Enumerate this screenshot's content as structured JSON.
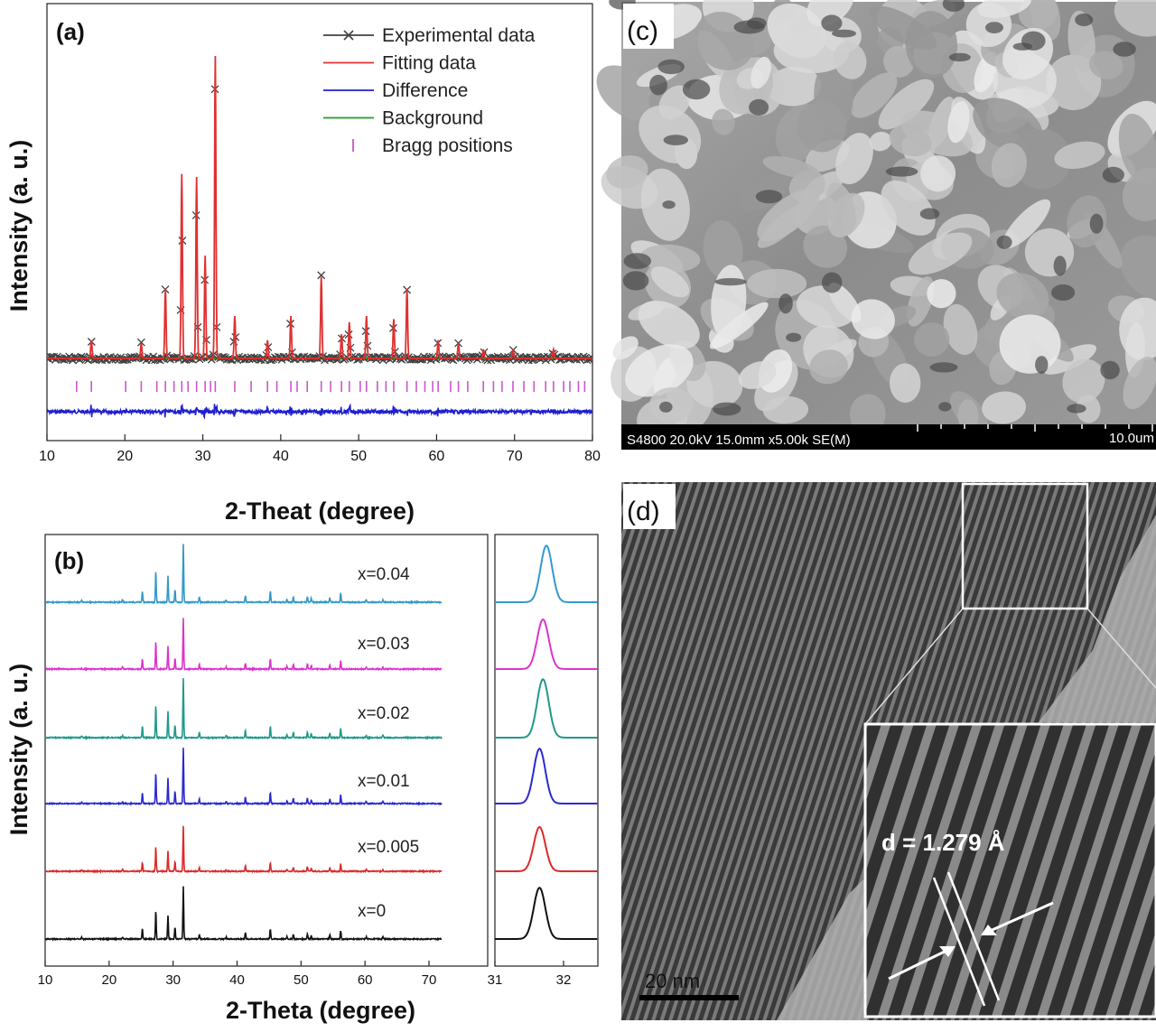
{
  "panels": {
    "a": {
      "label": "(a)"
    },
    "b": {
      "label": "(b)"
    },
    "c": {
      "label": "(c)",
      "sem_info": "S4800 20.0kV 15.0mm x5.00k SE(M)",
      "scale_text": "10.0um"
    },
    "d": {
      "label": "(d)",
      "scale_text": "20 nm",
      "annotation": "d = 1.279 Å"
    }
  },
  "colors": {
    "experimental": "#404040",
    "fitting": "#e03030",
    "difference": "#2020d0",
    "background": "#20a020",
    "bragg": "#cc55cc",
    "b_series": [
      "#3399cc",
      "#dd33cc",
      "#20998a",
      "#2a2ad0",
      "#dd2a2a",
      "#111111"
    ]
  },
  "chart_data": [
    {
      "type": "line",
      "panel": "a",
      "xlabel": "2-Theat (degree)",
      "ylabel": "Intensity (a. u.)",
      "xlim": [
        10,
        80
      ],
      "xticks": [
        10,
        20,
        30,
        40,
        50,
        60,
        70,
        80
      ],
      "legend_position": "top-right",
      "legend": [
        "Experimental data",
        "Fitting data",
        "Difference",
        "Background",
        "Bragg positions"
      ],
      "peaks": [
        {
          "x": 15.7,
          "h": 0.06
        },
        {
          "x": 22.1,
          "h": 0.05
        },
        {
          "x": 25.2,
          "h": 0.23
        },
        {
          "x": 27.3,
          "h": 0.61
        },
        {
          "x": 29.2,
          "h": 0.6
        },
        {
          "x": 30.3,
          "h": 0.34
        },
        {
          "x": 31.6,
          "h": 1.0
        },
        {
          "x": 34.1,
          "h": 0.14
        },
        {
          "x": 38.3,
          "h": 0.06
        },
        {
          "x": 41.3,
          "h": 0.14
        },
        {
          "x": 45.2,
          "h": 0.27
        },
        {
          "x": 47.8,
          "h": 0.08
        },
        {
          "x": 48.8,
          "h": 0.12
        },
        {
          "x": 51.0,
          "h": 0.14
        },
        {
          "x": 54.5,
          "h": 0.13
        },
        {
          "x": 56.2,
          "h": 0.23
        },
        {
          "x": 60.2,
          "h": 0.06
        },
        {
          "x": 62.8,
          "h": 0.05
        },
        {
          "x": 66.0,
          "h": 0.03
        },
        {
          "x": 69.8,
          "h": 0.03
        },
        {
          "x": 75.0,
          "h": 0.03
        }
      ],
      "bragg_positions": [
        13.8,
        15.7,
        20.1,
        22.1,
        24.1,
        25.2,
        26.3,
        27.3,
        28.1,
        29.2,
        30.3,
        31.0,
        31.6,
        34.1,
        36.2,
        38.3,
        39.5,
        41.3,
        42.1,
        43.4,
        45.2,
        46.4,
        47.8,
        48.8,
        50.2,
        51.0,
        52.4,
        53.5,
        54.5,
        56.2,
        57.4,
        58.5,
        59.5,
        60.2,
        61.8,
        62.8,
        64.0,
        66.0,
        67.3,
        68.4,
        69.8,
        71.2,
        72.5,
        74.0,
        75.0,
        76.3,
        77.1,
        78.2,
        79.0
      ]
    },
    {
      "type": "line",
      "panel": "b",
      "xlabel": "2-Theta (degree)",
      "ylabel": "Intensity (a. u.)",
      "xlim": [
        10,
        31
      ],
      "xticks": [
        10,
        20,
        30,
        40,
        50,
        60,
        70
      ],
      "xticks_right": [
        31,
        32
      ],
      "xlim_right": [
        31,
        32.5
      ],
      "series": [
        {
          "name": "x=0.04",
          "main_peak": 31.75
        },
        {
          "name": "x=0.03",
          "main_peak": 31.7
        },
        {
          "name": "x=0.02",
          "main_peak": 31.7
        },
        {
          "name": "x=0.01",
          "main_peak": 31.65
        },
        {
          "name": "x=0.005",
          "main_peak": 31.65
        },
        {
          "name": "x=0",
          "main_peak": 31.65
        }
      ],
      "peaks": [
        {
          "x": 15.7,
          "h": 0.03
        },
        {
          "x": 22.1,
          "h": 0.04
        },
        {
          "x": 25.2,
          "h": 0.2
        },
        {
          "x": 27.3,
          "h": 0.55
        },
        {
          "x": 29.2,
          "h": 0.45
        },
        {
          "x": 30.3,
          "h": 0.22
        },
        {
          "x": 31.6,
          "h": 1.0
        },
        {
          "x": 34.1,
          "h": 0.09
        },
        {
          "x": 38.3,
          "h": 0.04
        },
        {
          "x": 41.3,
          "h": 0.12
        },
        {
          "x": 45.2,
          "h": 0.2
        },
        {
          "x": 47.8,
          "h": 0.05
        },
        {
          "x": 48.8,
          "h": 0.09
        },
        {
          "x": 51.0,
          "h": 0.1
        },
        {
          "x": 51.6,
          "h": 0.07
        },
        {
          "x": 54.5,
          "h": 0.08
        },
        {
          "x": 56.2,
          "h": 0.16
        },
        {
          "x": 60.2,
          "h": 0.04
        },
        {
          "x": 62.8,
          "h": 0.04
        }
      ]
    }
  ]
}
